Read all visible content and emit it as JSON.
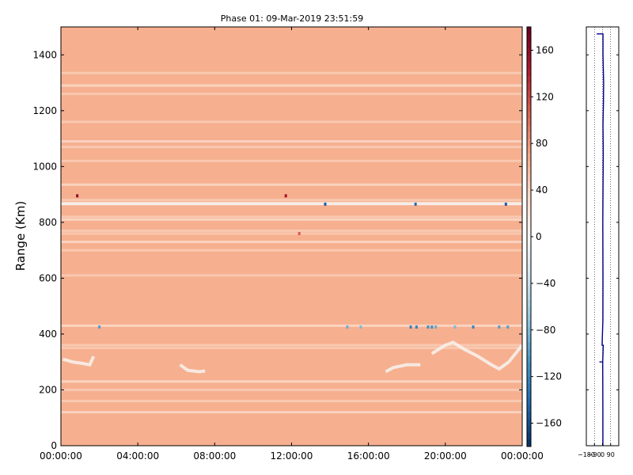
{
  "chart_data": [
    {
      "type": "heatmap",
      "title": "Phase 01: 09-Mar-2019 23:51:59",
      "xlabel": "",
      "ylabel": "Range (Km)",
      "x_ticks": [
        "00:00:00",
        "04:00:00",
        "08:00:00",
        "12:00:00",
        "16:00:00",
        "20:00:00",
        "00:00:00"
      ],
      "x_range_hours": [
        0,
        24
      ],
      "y_ticks": [
        0,
        200,
        400,
        600,
        800,
        1000,
        1200,
        1400
      ],
      "ylim": [
        0,
        1500
      ],
      "grid": false,
      "background_value": 65,
      "colorbar": {
        "range": [
          -180,
          180
        ],
        "ticks": [
          160,
          120,
          80,
          40,
          0,
          -40,
          -80,
          -120,
          -160
        ],
        "colormap": "RdBu_r",
        "colors": [
          "#053061",
          "#2166ac",
          "#4393c3",
          "#92c5de",
          "#d1e5f0",
          "#f7f7f7",
          "#fddbc7",
          "#f4a582",
          "#d6604d",
          "#b2182b",
          "#67001f"
        ]
      },
      "bright_bands_km": [
        120,
        160,
        200,
        230,
        350,
        360,
        430,
        610,
        700,
        730,
        760,
        770,
        810,
        820,
        880,
        935,
        1020,
        1070,
        1090,
        1160,
        1260,
        1290,
        1335
      ],
      "band_strip_km": 867,
      "spots": [
        {
          "hour": 0.85,
          "km": 895,
          "value": 160
        },
        {
          "hour": 11.7,
          "km": 895,
          "value": 150
        },
        {
          "hour": 12.4,
          "km": 760,
          "value": 110
        },
        {
          "hour": 13.75,
          "km": 865,
          "value": -150
        },
        {
          "hour": 18.45,
          "km": 865,
          "value": -140
        },
        {
          "hour": 23.15,
          "km": 865,
          "value": -150
        },
        {
          "hour": 2.0,
          "km": 425,
          "value": -100
        },
        {
          "hour": 14.9,
          "km": 425,
          "value": -90
        },
        {
          "hour": 15.6,
          "km": 425,
          "value": -80
        },
        {
          "hour": 18.2,
          "km": 425,
          "value": -120
        },
        {
          "hour": 18.5,
          "km": 425,
          "value": -120
        },
        {
          "hour": 19.1,
          "km": 425,
          "value": -110
        },
        {
          "hour": 19.3,
          "km": 425,
          "value": -110
        },
        {
          "hour": 19.5,
          "km": 425,
          "value": -90
        },
        {
          "hour": 20.5,
          "km": 425,
          "value": -80
        },
        {
          "hour": 21.45,
          "km": 425,
          "value": -120
        },
        {
          "hour": 22.8,
          "km": 425,
          "value": -100
        },
        {
          "hour": 23.25,
          "km": 425,
          "value": -100
        }
      ],
      "trace_segments": [
        {
          "hours": [
            0.1,
            0.6,
            1.1,
            1.5,
            1.7
          ],
          "km": [
            310,
            300,
            295,
            290,
            320
          ]
        },
        {
          "hours": [
            6.2,
            6.6,
            7.2,
            7.5
          ],
          "km": [
            290,
            270,
            265,
            268
          ]
        },
        {
          "hours": [
            16.9,
            17.3,
            18.0,
            18.7
          ],
          "km": [
            265,
            280,
            290,
            290
          ]
        },
        {
          "hours": [
            19.3,
            20.0,
            20.4,
            21.0,
            21.7,
            22.4,
            22.8,
            23.3,
            24.0
          ],
          "km": [
            330,
            360,
            370,
            345,
            320,
            290,
            275,
            300,
            360
          ]
        }
      ]
    },
    {
      "type": "line",
      "title": "",
      "xlim": [
        -180,
        180
      ],
      "x_ticks": [
        "-180",
        "-90",
        "0",
        "90"
      ],
      "ylim": [
        0,
        1500
      ],
      "grid": "vertical dotted",
      "series": [
        {
          "color": "#00008b",
          "points": [
            {
              "x": -65,
              "km": 1475
            },
            {
              "x": 5,
              "km": 1475
            },
            {
              "x": 5,
              "km": 1400
            },
            {
              "x": 12,
              "km": 1300
            },
            {
              "x": 10,
              "km": 1230
            },
            {
              "x": 5,
              "km": 1150
            },
            {
              "x": 8,
              "km": 1050
            },
            {
              "x": 6,
              "km": 950
            },
            {
              "x": 3,
              "km": 800
            },
            {
              "x": 5,
              "km": 600
            },
            {
              "x": 4,
              "km": 450
            },
            {
              "x": -5,
              "km": 360
            },
            {
              "x": 8,
              "km": 360
            },
            {
              "x": 2,
              "km": 300
            },
            {
              "x": -35,
              "km": 300
            },
            {
              "x": 2,
              "km": 300
            },
            {
              "x": 3,
              "km": 200
            },
            {
              "x": 4,
              "km": 100
            },
            {
              "x": 4,
              "km": 0
            }
          ]
        }
      ]
    }
  ]
}
